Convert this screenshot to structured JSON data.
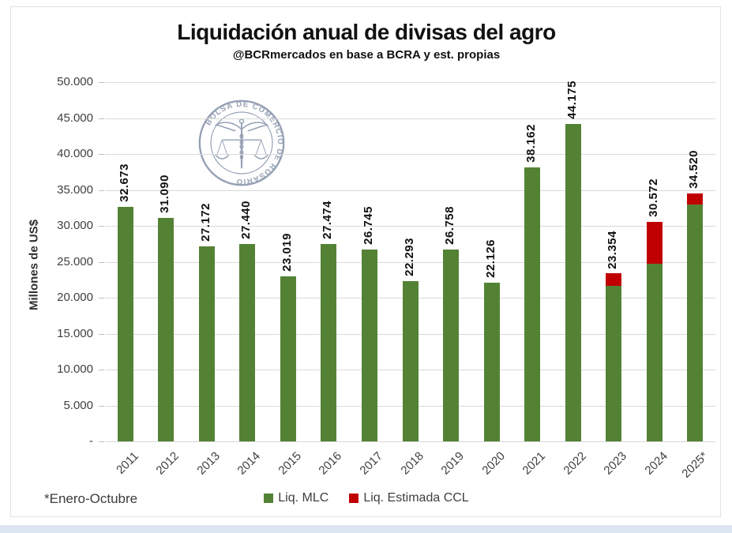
{
  "title": "Liquidación anual de divisas del agro",
  "subtitle": "@BCRmercados en base a BCRA y est. propias",
  "footnote": "*Enero-Octubre",
  "y_axis_title": "Millones de US$",
  "logo_text": "BOLSA DE COMERCIO DE ROSARIO",
  "colors": {
    "mlc_green": "#548235",
    "ccl_red": "#C00000",
    "gridline": "#d9d9d9",
    "axis_text": "#404040",
    "logo_blue": "#8591a9"
  },
  "legend": [
    {
      "label": "Liq. MLC",
      "color": "#548235"
    },
    {
      "label": "Liq. Estimada CCL",
      "color": "#C00000"
    }
  ],
  "chart_data": {
    "type": "bar",
    "stacked": true,
    "title": "Liquidación anual de divisas del agro",
    "subtitle": "@BCRmercados en base a BCRA y est. propias",
    "ylabel": "Millones de US$",
    "ylim": [
      0,
      50000
    ],
    "grid": true,
    "legend_position": "bottom",
    "categories": [
      "2011",
      "2012",
      "2013",
      "2014",
      "2015",
      "2016",
      "2017",
      "2018",
      "2019",
      "2020",
      "2021",
      "2022",
      "2023",
      "2024",
      "2025*"
    ],
    "series": [
      {
        "name": "Liq. MLC",
        "color": "#548235",
        "values": [
          32673,
          31090,
          27172,
          27440,
          23019,
          27474,
          26745,
          22293,
          26758,
          22126,
          38162,
          44175,
          21604,
          24750,
          32920
        ]
      },
      {
        "name": "Liq. Estimada CCL",
        "color": "#C00000",
        "values": [
          0,
          0,
          0,
          0,
          0,
          0,
          0,
          0,
          0,
          0,
          0,
          0,
          1750,
          5822,
          1600
        ]
      }
    ],
    "totals": [
      32673,
      31090,
      27172,
      27440,
      23019,
      27474,
      26745,
      22293,
      26758,
      22126,
      38162,
      44175,
      23354,
      30572,
      34520
    ],
    "total_labels": [
      "32.673",
      "31.090",
      "27.172",
      "27.440",
      "23.019",
      "27.474",
      "26.745",
      "22.293",
      "26.758",
      "22.126",
      "38.162",
      "44.175",
      "23.354",
      "30.572",
      "34.520"
    ],
    "y_tick_labels_bottom_to_top": [
      "-",
      "5.000",
      "10.000",
      "15.000",
      "20.000",
      "25.000",
      "30.000",
      "35.000",
      "40.000",
      "45.000",
      "50.000"
    ]
  }
}
